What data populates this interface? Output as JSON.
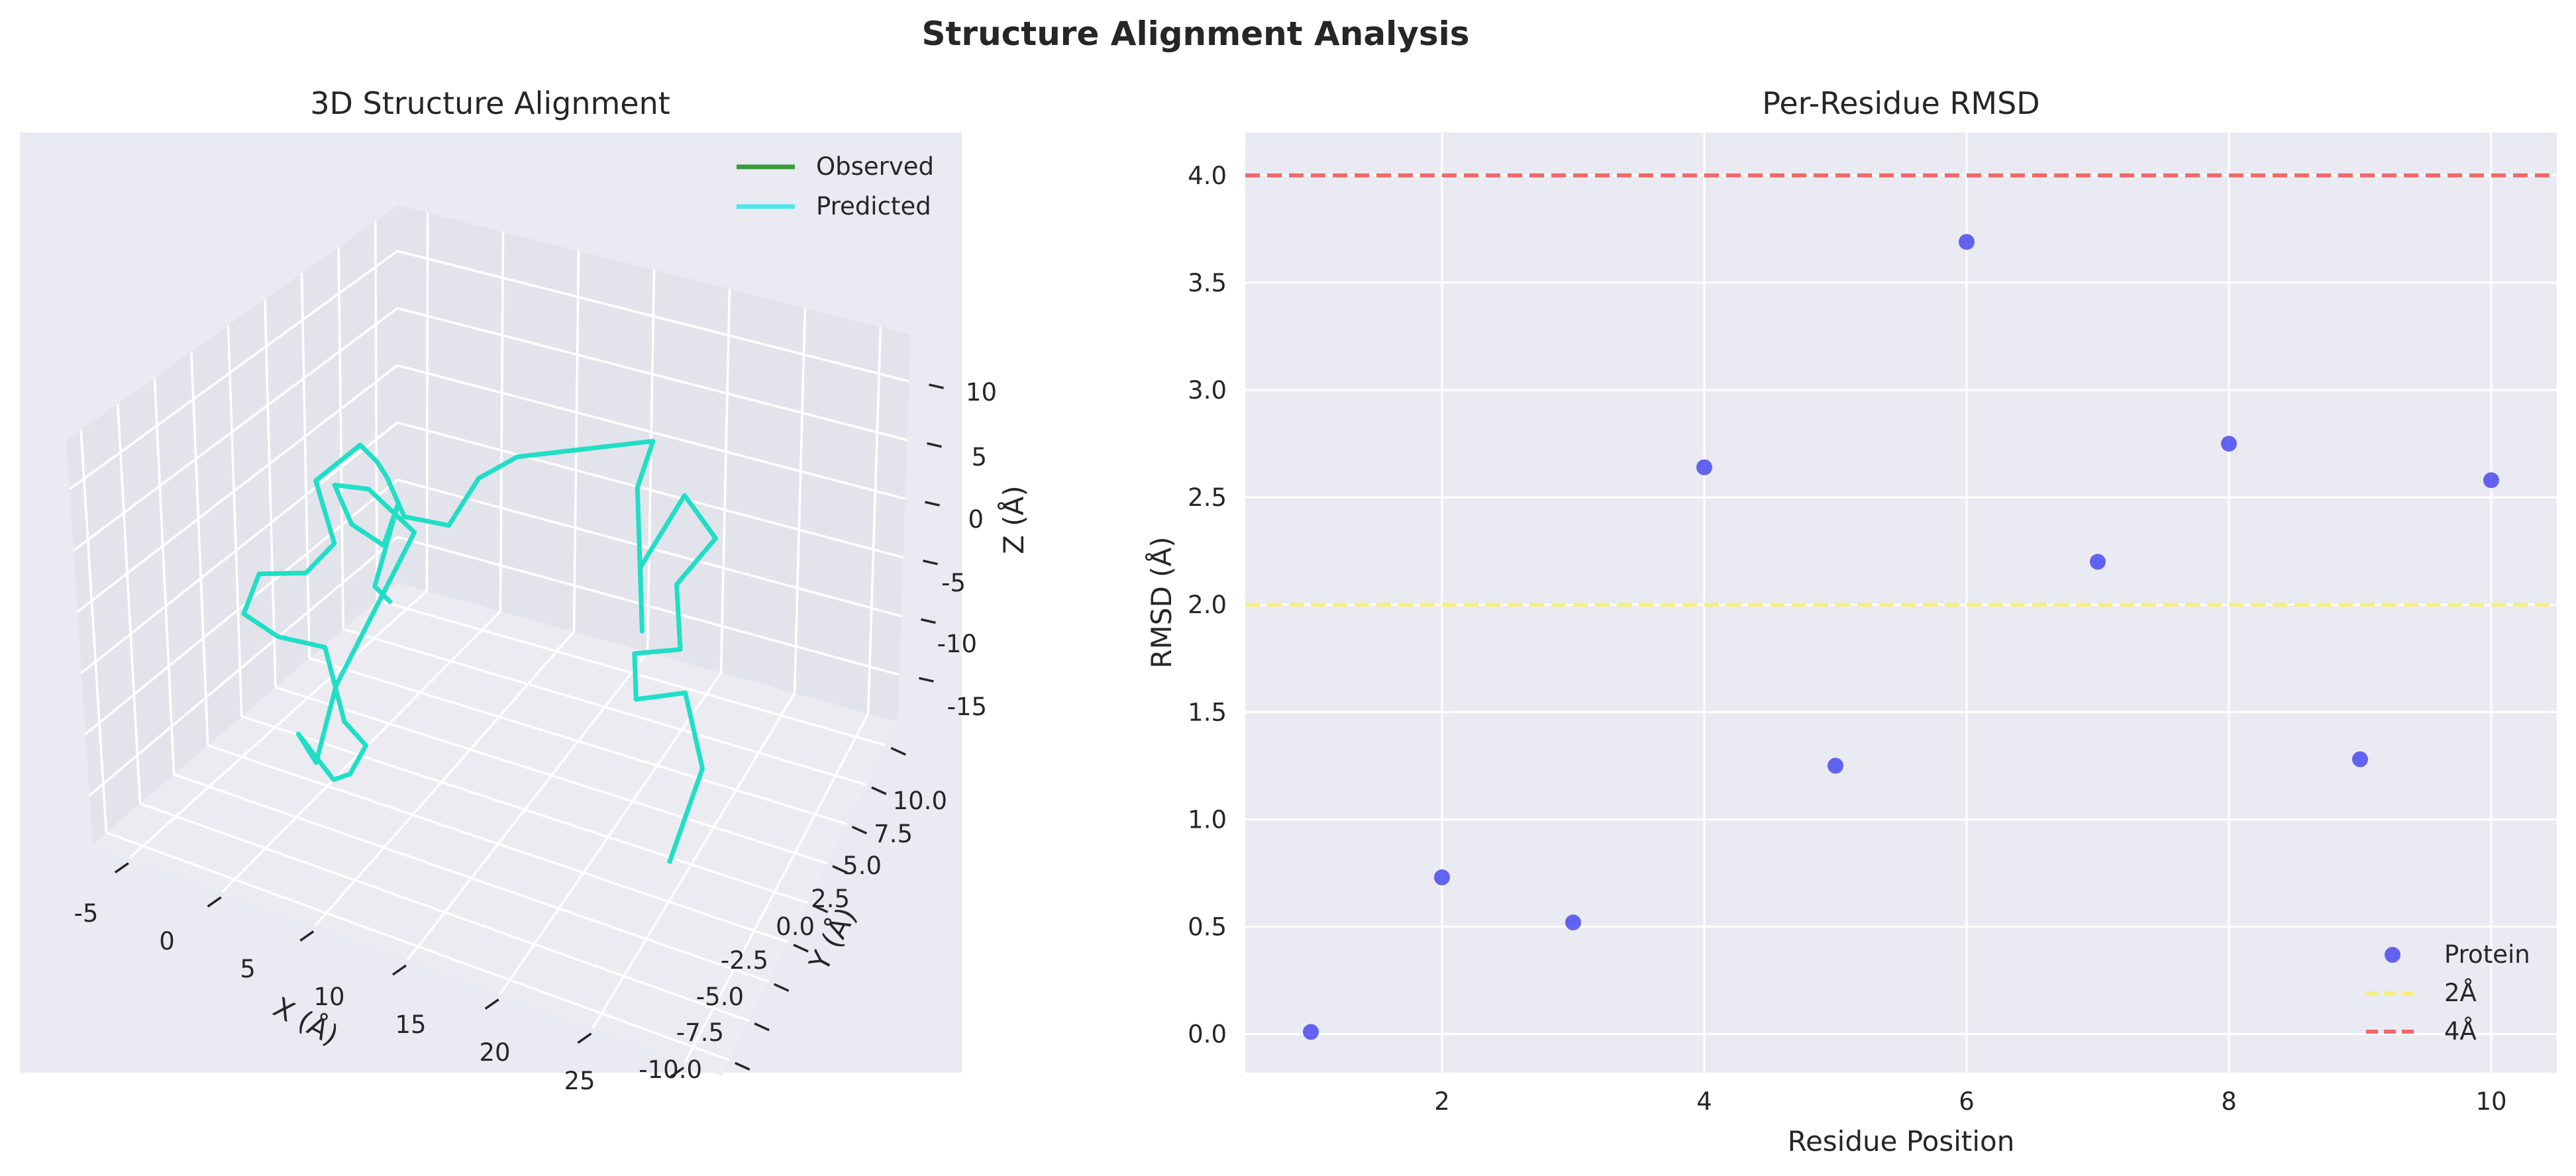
{
  "figure": {
    "suptitle": "Structure Alignment Analysis"
  },
  "chart_data": [
    {
      "type": "line3d",
      "title": "3D Structure Alignment",
      "xlabel": "X (Å)",
      "ylabel": "Y (Å)",
      "zlabel": "Z (Å)",
      "xlim": [
        -7,
        27
      ],
      "ylim": [
        -11,
        11.5
      ],
      "zlim": [
        -19,
        14
      ],
      "x_ticks": [
        "-5",
        "0",
        "5",
        "10",
        "15",
        "20",
        "25"
      ],
      "y_ticks": [
        "-10.0",
        "-7.5",
        "-5.0",
        "-2.5",
        "0.0",
        "2.5",
        "5.0",
        "7.5",
        "10.0"
      ],
      "z_ticks": [
        "-15",
        "-10",
        "-5",
        "0",
        "5",
        "10"
      ],
      "legend": {
        "position": "top-right",
        "entries": [
          "Observed",
          "Predicted"
        ]
      },
      "series": [
        {
          "name": "Observed",
          "color": "#2ca02c"
        },
        {
          "name": "Predicted",
          "color": "#1fdfdf"
        }
      ],
      "trace_xyz": [
        [
          22,
          -6,
          -10
        ],
        [
          22,
          -2,
          -7
        ],
        [
          20,
          0,
          -4
        ],
        [
          17,
          0,
          -6
        ],
        [
          17,
          0,
          -2
        ],
        [
          18,
          3,
          -5
        ],
        [
          16,
          6,
          -4
        ],
        [
          16,
          10,
          -5
        ],
        [
          14,
          10,
          -2
        ],
        [
          13,
          7,
          -5
        ],
        [
          15,
          4,
          -6
        ],
        [
          13,
          7,
          2
        ],
        [
          12,
          10,
          2
        ],
        [
          6,
          6,
          3
        ],
        [
          5,
          4,
          3
        ],
        [
          3,
          4,
          -2
        ],
        [
          1,
          3,
          -1
        ],
        [
          0,
          3,
          2
        ],
        [
          1,
          1,
          6
        ],
        [
          0,
          1,
          7
        ],
        [
          -2,
          0,
          4
        ],
        [
          -1,
          0,
          -1
        ],
        [
          -2,
          -1,
          -3
        ],
        [
          -4,
          -2,
          -3
        ],
        [
          -5,
          -2,
          -7
        ],
        [
          -3,
          -2,
          -8
        ],
        [
          -1,
          -1,
          -9
        ],
        [
          0,
          -1,
          -15
        ],
        [
          2,
          -2,
          -15
        ],
        [
          1,
          -2,
          -18
        ],
        [
          0,
          -2,
          -19
        ],
        [
          -2,
          -2,
          -16
        ],
        [
          -1,
          -2,
          -18
        ],
        [
          -2,
          1,
          -15
        ],
        [
          0,
          5,
          -5
        ],
        [
          -2,
          4,
          -1
        ],
        [
          -5,
          5,
          -3
        ],
        [
          -4,
          5,
          -6
        ],
        [
          -2,
          5,
          -7
        ],
        [
          -1,
          5,
          -3
        ],
        [
          -1,
          3,
          -8
        ],
        [
          0,
          3,
          -9
        ]
      ]
    },
    {
      "type": "scatter",
      "title": "Per-Residue RMSD",
      "xlabel": "Residue Position",
      "ylabel": "RMSD (Å)",
      "xlim": [
        0.5,
        10.5
      ],
      "ylim": [
        -0.18,
        4.2
      ],
      "x_ticks": [
        2,
        4,
        6,
        8,
        10
      ],
      "y_ticks": [
        "0.0",
        "0.5",
        "1.0",
        "1.5",
        "2.0",
        "2.5",
        "3.0",
        "3.5",
        "4.0"
      ],
      "series": [
        {
          "name": "Protein",
          "color": "#4a4af0",
          "x": [
            1,
            2,
            3,
            4,
            5,
            6,
            7,
            8,
            9,
            10
          ],
          "y": [
            0.01,
            0.73,
            0.52,
            2.64,
            1.25,
            3.69,
            2.2,
            2.75,
            1.28,
            2.58
          ]
        }
      ],
      "hlines": [
        {
          "name": "2Å",
          "y": 2.0,
          "color": "#f5f080",
          "style": "dashed"
        },
        {
          "name": "4Å",
          "y": 4.0,
          "color": "#f06868",
          "style": "dashed"
        }
      ],
      "legend": {
        "position": "bottom-right",
        "entries": [
          "Protein",
          "2Å",
          "4Å"
        ]
      }
    }
  ]
}
